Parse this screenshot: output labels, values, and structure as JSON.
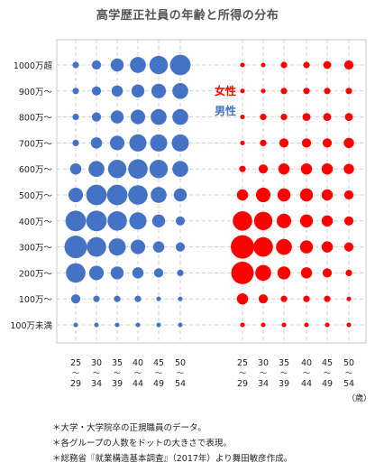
{
  "chart_data": {
    "type": "scatter",
    "title": "高学歴正社員の年齢と所得の分布",
    "y_categories": [
      "1000万超",
      "900万～",
      "800万～",
      "700万～",
      "600万～",
      "500万～",
      "400万～",
      "300万～",
      "200万～",
      "100万～",
      "100万未満"
    ],
    "x_groups": [
      {
        "top": "25",
        "bottom": "29"
      },
      {
        "top": "30",
        "bottom": "34"
      },
      {
        "top": "35",
        "bottom": "39"
      },
      {
        "top": "40",
        "bottom": "44"
      },
      {
        "top": "45",
        "bottom": "49"
      },
      {
        "top": "50",
        "bottom": "54"
      }
    ],
    "x_unit": "（歳）",
    "grid": true,
    "series": [
      {
        "name": "男性",
        "color": "#4472c4",
        "sizes": [
          [
            1,
            2,
            4,
            6,
            8,
            10
          ],
          [
            1,
            2,
            3,
            4,
            5,
            6
          ],
          [
            1,
            2,
            4,
            5,
            6,
            6
          ],
          [
            1,
            3,
            5,
            7,
            7,
            7
          ],
          [
            3,
            6,
            8,
            9,
            8,
            6
          ],
          [
            5,
            10,
            10,
            9,
            6,
            4
          ],
          [
            10,
            10,
            9,
            7,
            4,
            2
          ],
          [
            12,
            9,
            7,
            5,
            3,
            2
          ],
          [
            9,
            5,
            4,
            3,
            2,
            1
          ],
          [
            2,
            1,
            1,
            1,
            0.5,
            0.5
          ],
          [
            0.5,
            0.5,
            0.5,
            0.5,
            0.5,
            0.5
          ]
        ]
      },
      {
        "name": "女性",
        "color": "#ff0000",
        "sizes": [
          [
            0.5,
            0.5,
            1,
            1,
            1.5,
            2
          ],
          [
            0.5,
            0.5,
            1,
            1,
            1,
            1
          ],
          [
            0.5,
            1,
            1,
            1.5,
            1.5,
            1.5
          ],
          [
            0.5,
            1,
            2,
            2,
            2,
            2.5
          ],
          [
            1,
            2,
            3,
            3,
            3,
            2.5
          ],
          [
            3,
            5,
            4,
            4,
            3,
            2
          ],
          [
            9,
            8,
            5,
            4,
            3,
            2
          ],
          [
            13,
            9,
            6,
            4,
            3,
            2
          ],
          [
            12,
            6,
            4,
            3,
            2,
            1
          ],
          [
            3,
            2,
            1,
            1,
            1,
            0.5
          ],
          [
            0.5,
            0.5,
            0.5,
            0.5,
            0.5,
            0.5
          ]
        ]
      }
    ]
  },
  "notes": [
    "＊大学・大学院卒の正規職員のデータ。",
    "＊各グループの人数をドットの大きさで表現。",
    "＊総務省『就業構造基本調査』（2017年）より舞田敏彦作成。"
  ]
}
